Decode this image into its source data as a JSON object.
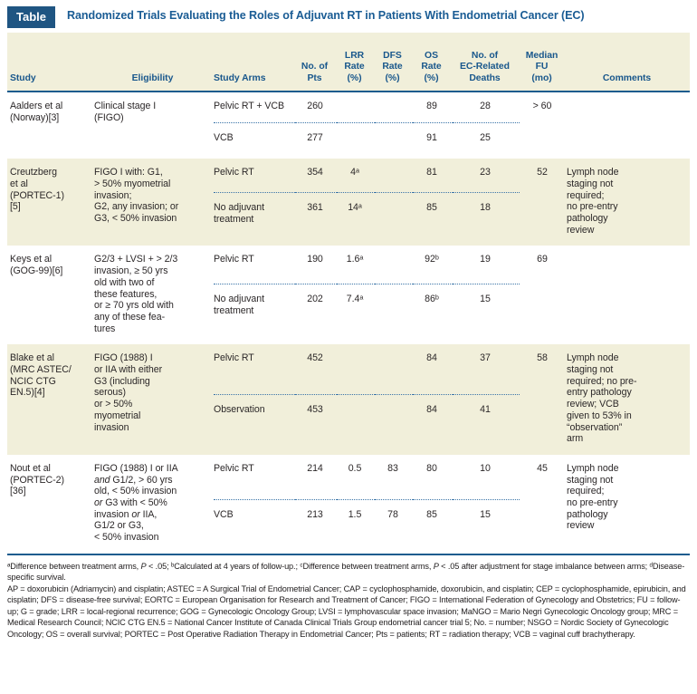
{
  "colors": {
    "accent_blue": "#1a5c8e",
    "badge_bg": "#1f5582",
    "band_beige": "#f1efda",
    "dotted_rule": "#3a74a8"
  },
  "header": {
    "badge_label": "Table",
    "title": "Randomized Trials Evaluating the Roles of Adjuvant RT in Patients With Endometrial Cancer (EC)"
  },
  "columns": [
    "Study",
    "Eligibility",
    "Study Arms",
    "No. of\nPts",
    "LRR\nRate\n(%)",
    "DFS\nRate\n(%)",
    "OS\nRate\n(%)",
    "No. of\nEC-Related\nDeaths",
    "Median\nFU\n(mo)",
    "Comments"
  ],
  "rows": [
    {
      "study": "Aalders et al\n(Norway)[3]",
      "eligibility": "Clinical stage I\n(FIGO)",
      "comments": "",
      "arms": [
        {
          "arm": "Pelvic RT + VCB",
          "pts": "260",
          "lrr": "",
          "dfs": "",
          "os": "89",
          "deaths": "28",
          "fu": "> 60"
        },
        {
          "arm": "VCB",
          "pts": "277",
          "lrr": "",
          "dfs": "",
          "os": "91",
          "deaths": "25",
          "fu": ""
        }
      ]
    },
    {
      "study": "Creutzberg\net al\n(PORTEC-1)\n[5]",
      "eligibility": "FIGO I with: G1,\n> 50% myometrial\ninvasion;\nG2, any invasion; or\nG3, < 50% invasion",
      "comments": "Lymph node\nstaging not\nrequired;\nno pre-entry\npathology\nreview",
      "arms": [
        {
          "arm": "Pelvic RT",
          "pts": "354",
          "lrr": "4ᵃ",
          "dfs": "",
          "os": "81",
          "deaths": "23",
          "fu": "52"
        },
        {
          "arm": "No adjuvant\ntreatment",
          "pts": "361",
          "lrr": "14ᵃ",
          "dfs": "",
          "os": "85",
          "deaths": "18",
          "fu": ""
        }
      ]
    },
    {
      "study": "Keys et al\n(GOG-99)[6]",
      "eligibility": "G2/3 + LVSI + > 2/3\ninvasion, ≥ 50 yrs\nold with two of\nthese features,\nor ≥ 70 yrs old with\nany of these fea-\ntures",
      "comments": "",
      "arms": [
        {
          "arm": "Pelvic RT",
          "pts": "190",
          "lrr": "1.6ᵃ",
          "dfs": "",
          "os": "92ᵇ",
          "deaths": "19",
          "fu": "69"
        },
        {
          "arm": "No adjuvant\ntreatment",
          "pts": "202",
          "lrr": "7.4ᵃ",
          "dfs": "",
          "os": "86ᵇ",
          "deaths": "15",
          "fu": ""
        }
      ]
    },
    {
      "study": "Blake et al\n(MRC ASTEC/\nNCIC CTG\nEN.5)[4]",
      "eligibility": "FIGO (1988) I\nor IIA with either\nG3 (including\nserous)\nor > 50%\nmyometrial\ninvasion",
      "comments": "Lymph node\nstaging not\nrequired; no pre-\nentry pathology\nreview; VCB\ngiven to 53% in\n“observation”\narm",
      "arms": [
        {
          "arm": "Pelvic RT",
          "pts": "452",
          "lrr": "",
          "dfs": "",
          "os": "84",
          "deaths": "37",
          "fu": "58"
        },
        {
          "arm": "Observation",
          "pts": "453",
          "lrr": "",
          "dfs": "",
          "os": "84",
          "deaths": "41",
          "fu": ""
        }
      ]
    },
    {
      "study": "Nout et al\n(PORTEC-2)\n[36]",
      "eligibility": "FIGO (1988) I or IIA\n*and* G1/2, > 60 yrs\nold, < 50% invasion\n*or* G3 with < 50%\ninvasion *or* IIA,\nG1/2 or G3,\n< 50% invasion",
      "comments": "Lymph node\nstaging not\nrequired;\nno pre-entry\npathology\nreview",
      "arms": [
        {
          "arm": "Pelvic RT",
          "pts": "214",
          "lrr": "0.5",
          "dfs": "83",
          "os": "80",
          "deaths": "10",
          "fu": "45"
        },
        {
          "arm": "VCB",
          "pts": "213",
          "lrr": "1.5",
          "dfs": "78",
          "os": "85",
          "deaths": "15",
          "fu": ""
        }
      ]
    }
  ],
  "notes": {
    "footnotes": "ᵃDifference between treatment arms, *P* < .05; ᵇCalculated at 4 years of follow-up.; ᶜDifference between treatment arms, *P* < .05 after adjustment for stage imbalance between arms; ᵈDisease-specific survival.",
    "abbreviations": "AP = doxorubicin (Adriamycin) and cisplatin; ASTEC = A Surgical Trial of Endometrial Cancer; CAP = cyclophosphamide, doxorubicin, and cisplatin; CEP = cyclophosphamide, epirubicin, and cisplatin; DFS = disease-free survival; EORTC = European Organisation for Research and Treatment of Cancer; FIGO = International Federation of Gynecology and Obstetrics; FU = follow-up; G = grade; LRR = local-regional recurrence; GOG = Gynecologic Oncology Group; LVSI = lymphovascular space invasion; MaNGO = Mario Negri Gynecologic Oncology group; MRC = Medical Research Council; NCIC CTG EN.5 = National Cancer Institute of Canada Clinical Trials Group endometrial cancer trial 5; No. = number; NSGO = Nordic Society of Gynecologic Oncology; OS = overall survival; PORTEC = Post Operative Radiation Therapy in Endometrial Cancer; Pts = patients; RT = radiation therapy; VCB = vaginal cuff brachytherapy."
  }
}
